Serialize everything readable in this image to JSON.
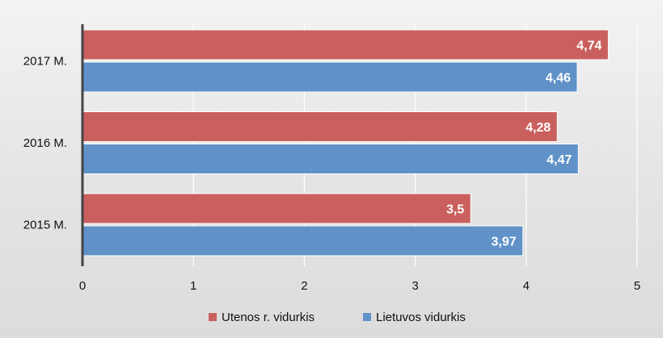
{
  "chart_data": {
    "type": "bar",
    "orientation": "horizontal",
    "categories": [
      "2017 M.",
      "2016 M.",
      "2015 M."
    ],
    "series": [
      {
        "name": "Utenos r. vidurkis",
        "values": [
          4.74,
          4.28,
          3.5
        ],
        "labels": [
          "4,74",
          "4,28",
          "3,5"
        ],
        "color": "#c9605e"
      },
      {
        "name": "Lietuvos vidurkis",
        "values": [
          4.46,
          4.47,
          3.97
        ],
        "labels": [
          "4,46",
          "4,47",
          "3,97"
        ],
        "color": "#6092c8"
      }
    ],
    "xlim": [
      0,
      5
    ],
    "xticks": [
      "0",
      "1",
      "2",
      "3",
      "4",
      "5"
    ],
    "grid": true,
    "legend": "bottom",
    "title": "",
    "xlabel": "",
    "ylabel": ""
  }
}
